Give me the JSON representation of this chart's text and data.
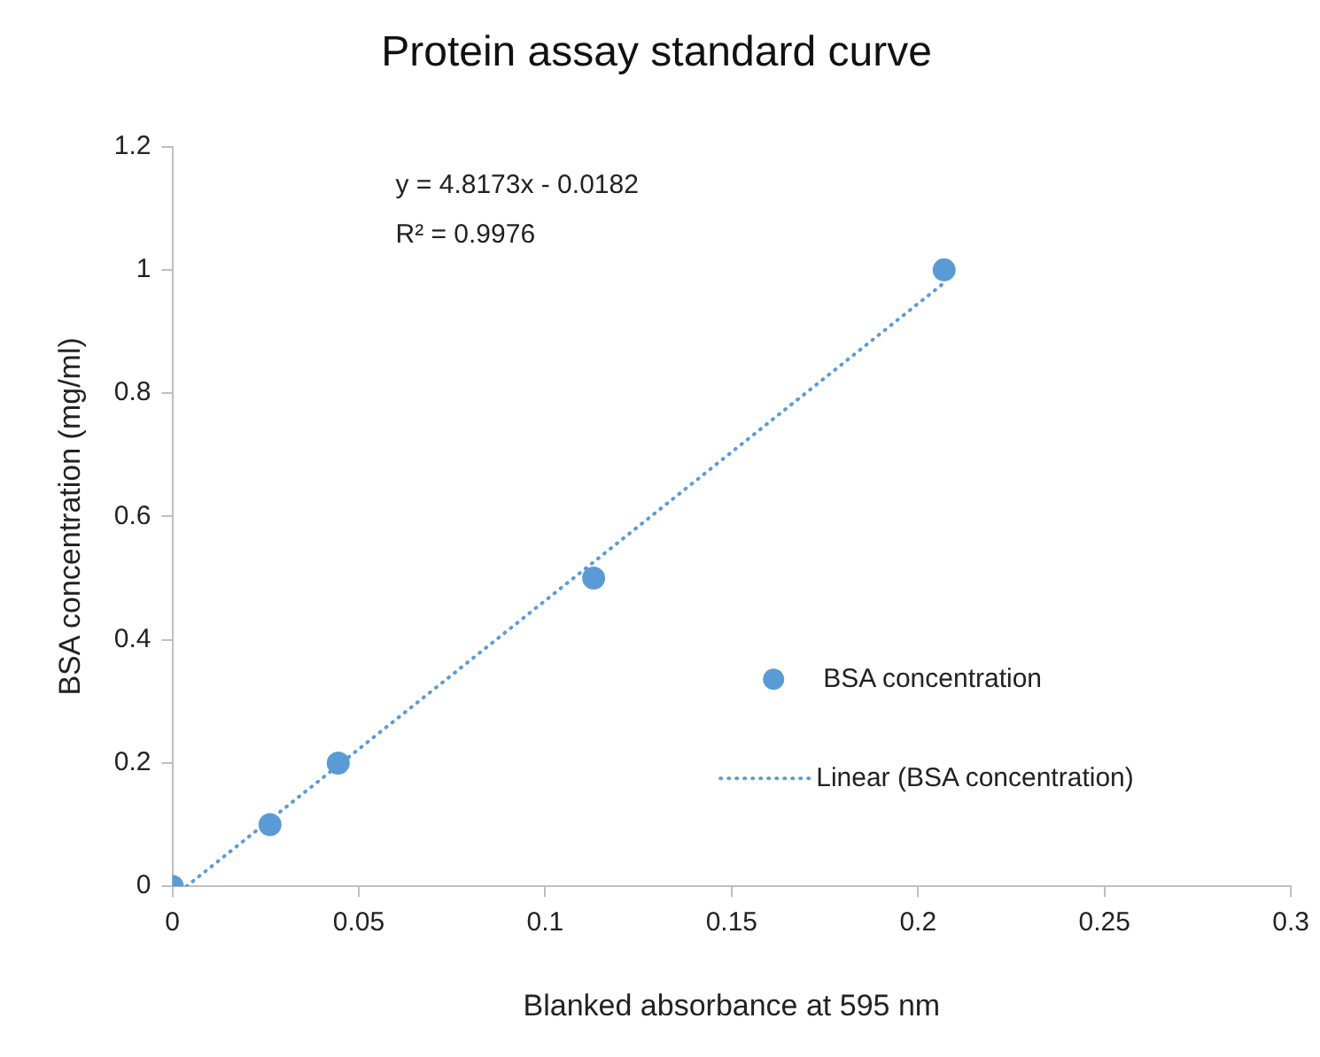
{
  "chart_data": {
    "type": "scatter",
    "title": "Protein assay standard curve",
    "xlabel": "Blanked absorbance at 595 nm",
    "ylabel": "BSA concentration (mg/ml)",
    "series": [
      {
        "name": "BSA concentration",
        "type": "scatter",
        "color": "#5b9bd5",
        "marker": "circle",
        "x": [
          0,
          0.0262,
          0.0445,
          0.113,
          0.207
        ],
        "values": [
          0,
          0.1,
          0.2,
          0.5,
          1
        ]
      },
      {
        "name": "Linear (BSA concentration)",
        "type": "line",
        "color": "#5b9bd5",
        "line_style": "dotted",
        "marker": "none",
        "x": [
          0.0038,
          0.207
        ],
        "values": [
          0,
          0.979
        ]
      }
    ],
    "annotations": [
      "y = 4.8173x - 0.0182",
      "R² = 0.9976"
    ],
    "xlim": [
      0,
      0.3
    ],
    "xticks": [
      0,
      0.05,
      0.1,
      0.15,
      0.2,
      0.25,
      0.3
    ],
    "ylim": [
      0,
      1.2
    ],
    "yticks": [
      0,
      0.2,
      0.4,
      0.6,
      0.8,
      1,
      1.2
    ],
    "grid": false,
    "legend": "right"
  }
}
